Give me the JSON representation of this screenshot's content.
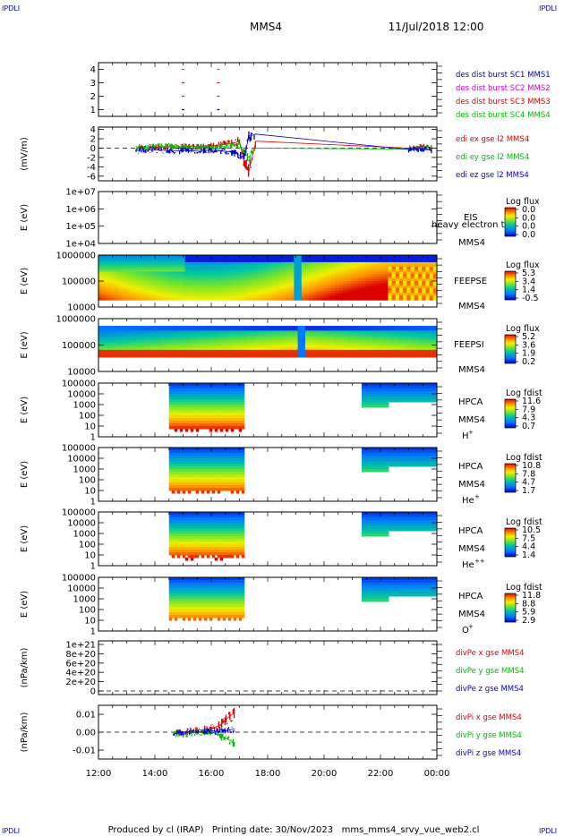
{
  "header": {
    "corner_left": "IPDLI",
    "corner_right": "IPDLI",
    "title": "MMS4",
    "datetime": "11/Jul/2018 12:00"
  },
  "footer": {
    "corner_left": "IPDLI",
    "corner_right": "IPDLI",
    "text": "Produced by cl (IRAP)   Printing date: 30/Nov/2023   mms_mms4_srvy_vue_web2.cl"
  },
  "x_axis": {
    "ticks": [
      "12:00",
      "14:00",
      "16:00",
      "18:00",
      "20:00",
      "22:00",
      "00:00"
    ]
  },
  "colors": {
    "mms1": "#0000cc",
    "mms2": "#cc00cc",
    "mms3": "#dd0000",
    "mms4": "#00bb00",
    "x": "#dd0000",
    "y": "#00bb00",
    "z": "#0000cc"
  },
  "panels": [
    {
      "id": "burst",
      "yticks": [
        "1",
        "2",
        "3",
        "4"
      ],
      "legend": [
        "des dist burst SC1 MMS1",
        "des dist burst SC2 MMS2",
        "des dist burst SC3 MMS3",
        "des dist burst SC4 MMS4"
      ]
    },
    {
      "id": "edi",
      "ylabel": "(mV/m)",
      "yticks": [
        "4",
        "2",
        "0",
        "-2",
        "-4",
        "-6"
      ],
      "legend": [
        "edi ex gse l2 MMS4",
        "edi ey gse l2 MMS4",
        "edi ez gse l2 MMS4"
      ]
    },
    {
      "id": "eis",
      "ylabel": "E (eV)",
      "yticks": [
        "1e+07",
        "1e+06",
        "1e+05",
        "1e+04"
      ],
      "label1": "EIS",
      "label2": "MMS4",
      "overlay": "heavy electron to",
      "cb_title": "Log flux",
      "cb_ticks": [
        "0.0",
        "0.0",
        "0.0",
        "0.0"
      ]
    },
    {
      "id": "feeps_e",
      "ylabel": "E (eV)",
      "yticks": [
        "1000000",
        "100000",
        "10000"
      ],
      "label1": "FEEPSE",
      "label2": "MMS4",
      "cb_title": "Log flux",
      "cb_ticks": [
        "5.3",
        "3.4",
        "1.4",
        "-0.5"
      ]
    },
    {
      "id": "feeps_i",
      "ylabel": "E (eV)",
      "yticks": [
        "1000000",
        "100000",
        "10000"
      ],
      "label1": "FEEPSI",
      "label2": "MMS4",
      "cb_title": "Log flux",
      "cb_ticks": [
        "5.2",
        "3.6",
        "1.9",
        "0.2"
      ]
    },
    {
      "id": "hpca_h",
      "ylabel": "E (eV)",
      "yticks": [
        "100000",
        "10000",
        "1000",
        "100",
        "10",
        "1"
      ],
      "label1": "HPCA",
      "label2": "MMS4",
      "species": "H",
      "species_sup": "+",
      "cb_title": "Log fdist",
      "cb_ticks": [
        "11.6",
        "7.9",
        "4.3",
        "0.7"
      ]
    },
    {
      "id": "hpca_he",
      "ylabel": "E (eV)",
      "yticks": [
        "100000",
        "10000",
        "1000",
        "100",
        "10",
        "1"
      ],
      "label1": "HPCA",
      "label2": "MMS4",
      "species": "He",
      "species_sup": "+",
      "cb_title": "Log fdist",
      "cb_ticks": [
        "10.8",
        "7.8",
        "4.7",
        "1.7"
      ]
    },
    {
      "id": "hpca_hepp",
      "ylabel": "E (eV)",
      "yticks": [
        "100000",
        "10000",
        "1000",
        "100",
        "10",
        "1"
      ],
      "label1": "HPCA",
      "label2": "MMS4",
      "species": "He",
      "species_sup": "++",
      "cb_title": "Log fdist",
      "cb_ticks": [
        "10.5",
        "7.5",
        "4.4",
        "1.4"
      ]
    },
    {
      "id": "hpca_o",
      "ylabel": "E (eV)",
      "yticks": [
        "100000",
        "10000",
        "1000",
        "100",
        "10",
        "1"
      ],
      "label1": "HPCA",
      "label2": "MMS4",
      "species": "O",
      "species_sup": "+",
      "cb_title": "Log fdist",
      "cb_ticks": [
        "11.8",
        "8.8",
        "5.9",
        "2.9"
      ]
    },
    {
      "id": "divpe",
      "ylabel": "(nPa/km)",
      "yticks": [
        "1e+21",
        "8e+20",
        "6e+20",
        "4e+20",
        "2e+20",
        "0"
      ],
      "legend": [
        "divPe x gse MMS4",
        "divPe y gse MMS4",
        "divPe z gse MMS4"
      ]
    },
    {
      "id": "divpi",
      "ylabel": "(nPa/km)",
      "yticks": [
        "0.01",
        "0.00",
        "-0.01"
      ],
      "legend": [
        "divPi x gse MMS4",
        "divPi y gse MMS4",
        "divPi z gse MMS4"
      ]
    }
  ],
  "chart_data": [
    {
      "type": "scatter",
      "panel": "burst",
      "x_range": [
        "12:00",
        "00:00"
      ],
      "ylim": [
        0.5,
        4.5
      ],
      "series": [
        {
          "name": "des dist burst SC1 MMS1",
          "y": 1,
          "x": [
            "15:00",
            "16:15"
          ]
        },
        {
          "name": "des dist burst SC2 MMS2",
          "y": 2,
          "x": [
            "15:00",
            "16:15"
          ]
        },
        {
          "name": "des dist burst SC3 MMS3",
          "y": 3,
          "x": [
            "15:00",
            "16:15"
          ]
        },
        {
          "name": "des dist burst SC4 MMS4",
          "y": 4,
          "x": [
            "15:00",
            "16:15"
          ]
        }
      ]
    },
    {
      "type": "line",
      "panel": "edi",
      "ylim": [
        -7,
        4.5
      ],
      "x": [
        "13:20",
        "14:00",
        "15:00",
        "16:00",
        "16:45",
        "17:00",
        "17:10",
        "17:20",
        "17:35",
        "23:00",
        "23:30",
        "23:50"
      ],
      "series": [
        {
          "name": "edi ex gse l2 MMS4",
          "values": [
            0.3,
            0.2,
            0.3,
            0.5,
            1.0,
            1.5,
            -3.0,
            -5.0,
            1.5,
            0.0,
            0.3,
            0.0
          ]
        },
        {
          "name": "edi ey gse l2 MMS4",
          "values": [
            0.0,
            0.5,
            0.2,
            0.3,
            0.5,
            1.0,
            -1.0,
            -2.0,
            0.0,
            -0.2,
            0.0,
            0.2
          ]
        },
        {
          "name": "edi ez gse l2 MMS4",
          "values": [
            -0.5,
            -0.4,
            -0.6,
            -0.4,
            -0.8,
            -1.5,
            -2.0,
            2.5,
            3.0,
            -0.3,
            -0.2,
            -0.5
          ]
        }
      ]
    },
    {
      "type": "heatmap",
      "panel": "eis",
      "ylim": [
        "1e+04",
        "1e+07"
      ],
      "log_y": true,
      "z_range": [
        0.0,
        0.0
      ],
      "data": "none"
    },
    {
      "type": "heatmap",
      "panel": "feeps_e",
      "ylim": [
        10000,
        1000000
      ],
      "log_y": true,
      "z_range": [
        -0.5,
        5.3
      ],
      "x_range": [
        "12:00",
        "00:00"
      ],
      "note_gap": "19:00"
    },
    {
      "type": "heatmap",
      "panel": "feeps_i",
      "ylim": [
        10000,
        1000000
      ],
      "log_y": true,
      "z_range": [
        0.2,
        5.2
      ],
      "x_range": [
        "12:00",
        "00:00"
      ]
    },
    {
      "type": "heatmap",
      "panel": "hpca_h",
      "ylim": [
        1,
        100000
      ],
      "log_y": true,
      "z_range": [
        0.7,
        11.6
      ],
      "intervals": [
        [
          "14:30",
          "17:10"
        ],
        [
          "21:20",
          "00:00"
        ]
      ]
    },
    {
      "type": "heatmap",
      "panel": "hpca_he",
      "ylim": [
        1,
        100000
      ],
      "log_y": true,
      "z_range": [
        1.7,
        10.8
      ],
      "intervals": [
        [
          "14:30",
          "17:10"
        ],
        [
          "21:20",
          "00:00"
        ]
      ]
    },
    {
      "type": "heatmap",
      "panel": "hpca_hepp",
      "ylim": [
        1,
        100000
      ],
      "log_y": true,
      "z_range": [
        1.4,
        10.5
      ],
      "intervals": [
        [
          "14:30",
          "17:10"
        ],
        [
          "21:20",
          "00:00"
        ]
      ]
    },
    {
      "type": "heatmap",
      "panel": "hpca_o",
      "ylim": [
        1,
        100000
      ],
      "log_y": true,
      "z_range": [
        2.9,
        11.8
      ],
      "intervals": [
        [
          "14:30",
          "17:10"
        ],
        [
          "21:20",
          "00:00"
        ]
      ]
    },
    {
      "type": "line",
      "panel": "divpe",
      "ylim": [
        0,
        1e+21
      ],
      "data": "none"
    },
    {
      "type": "line",
      "panel": "divpi",
      "ylim": [
        -0.015,
        0.015
      ],
      "x": [
        "14:40",
        "15:00",
        "15:30",
        "16:00",
        "16:20",
        "16:35",
        "16:50"
      ],
      "series": [
        {
          "name": "divPi x gse MMS4",
          "values": [
            0.0,
            0.0,
            0.001,
            0.002,
            0.004,
            0.008,
            0.011
          ]
        },
        {
          "name": "divPi y gse MMS4",
          "values": [
            0.0,
            -0.001,
            0.0,
            0.0,
            -0.002,
            -0.004,
            -0.006
          ]
        },
        {
          "name": "divPi z gse MMS4",
          "values": [
            -0.001,
            0.0,
            0.0,
            0.001,
            0.0,
            0.001,
            0.002
          ]
        }
      ]
    }
  ]
}
